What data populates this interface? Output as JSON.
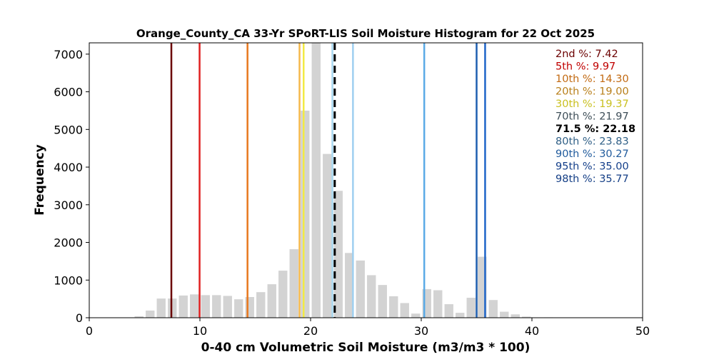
{
  "chart_data": {
    "type": "bar",
    "title": "Orange_County_CA 33-Yr SPoRT-LIS Soil Moisture Histogram for 22 Oct 2025",
    "xlabel": "0-40 cm Volumetric Soil Moisture (m3/m3 * 100)",
    "ylabel": "Frequency",
    "xlim": [
      0,
      50
    ],
    "ylim": [
      0,
      7300
    ],
    "xticks": [
      "0",
      "10",
      "20",
      "30",
      "40",
      "50"
    ],
    "yticks": [
      "0",
      "1000",
      "2000",
      "3000",
      "4000",
      "5000",
      "6000",
      "7000"
    ],
    "bar_color": "#d3d3d3",
    "bins": [
      {
        "x": 4.5,
        "count": 40
      },
      {
        "x": 5.5,
        "count": 190
      },
      {
        "x": 6.5,
        "count": 510
      },
      {
        "x": 7.5,
        "count": 510
      },
      {
        "x": 8.5,
        "count": 590
      },
      {
        "x": 9.5,
        "count": 620
      },
      {
        "x": 10.5,
        "count": 600
      },
      {
        "x": 11.5,
        "count": 600
      },
      {
        "x": 12.5,
        "count": 580
      },
      {
        "x": 13.5,
        "count": 490
      },
      {
        "x": 14.5,
        "count": 550
      },
      {
        "x": 15.5,
        "count": 680
      },
      {
        "x": 16.5,
        "count": 890
      },
      {
        "x": 17.5,
        "count": 1250
      },
      {
        "x": 18.5,
        "count": 1820
      },
      {
        "x": 19.5,
        "count": 5500
      },
      {
        "x": 20.5,
        "count": 7300
      },
      {
        "x": 21.5,
        "count": 4350
      },
      {
        "x": 22.5,
        "count": 3370
      },
      {
        "x": 23.5,
        "count": 1720
      },
      {
        "x": 24.5,
        "count": 1520
      },
      {
        "x": 25.5,
        "count": 1130
      },
      {
        "x": 26.5,
        "count": 870
      },
      {
        "x": 27.5,
        "count": 570
      },
      {
        "x": 28.5,
        "count": 390
      },
      {
        "x": 29.5,
        "count": 110
      },
      {
        "x": 30.5,
        "count": 760
      },
      {
        "x": 31.5,
        "count": 730
      },
      {
        "x": 32.5,
        "count": 360
      },
      {
        "x": 33.5,
        "count": 130
      },
      {
        "x": 34.5,
        "count": 530
      },
      {
        "x": 35.5,
        "count": 1620
      },
      {
        "x": 36.5,
        "count": 470
      },
      {
        "x": 37.5,
        "count": 160
      },
      {
        "x": 38.5,
        "count": 90
      },
      {
        "x": 39.5,
        "count": 30
      },
      {
        "x": 41.5,
        "count": 10
      }
    ],
    "percentile_lines": [
      {
        "label": "2nd %",
        "value": 7.42,
        "color": "#6b0000",
        "style": "solid"
      },
      {
        "label": "5th %",
        "value": 9.97,
        "color": "#e02020",
        "style": "solid"
      },
      {
        "label": "10th %",
        "value": 14.3,
        "color": "#e8781e",
        "style": "solid"
      },
      {
        "label": "20th %",
        "value": 19.0,
        "color": "#f5b84c",
        "style": "solid"
      },
      {
        "label": "30th %",
        "value": 19.37,
        "color": "#f2ea44",
        "style": "solid"
      },
      {
        "label": "70th %",
        "value": 21.97,
        "color": "#a8d8f0",
        "style": "solid"
      },
      {
        "label": "71.5 %",
        "value": 22.18,
        "color": "#000000",
        "style": "dashed"
      },
      {
        "label": "80th %",
        "value": 23.83,
        "color": "#9fcff0",
        "style": "solid"
      },
      {
        "label": "90th %",
        "value": 30.27,
        "color": "#5aaae6",
        "style": "solid"
      },
      {
        "label": "95th %",
        "value": 35.0,
        "color": "#1f5fb0",
        "style": "solid"
      },
      {
        "label": "98th %",
        "value": 35.77,
        "color": "#1e64c8",
        "style": "solid"
      }
    ],
    "legend_entries": [
      {
        "text": "2nd %: 7.42",
        "color": "#6b0000"
      },
      {
        "text": "5th %: 9.97",
        "color": "#c00000"
      },
      {
        "text": "10th %: 14.30",
        "color": "#c26a12"
      },
      {
        "text": "20th %: 19.00",
        "color": "#b87f1a"
      },
      {
        "text": "30th %: 19.37",
        "color": "#c9c020"
      },
      {
        "text": "70th %: 21.97",
        "color": "#3e4e58"
      },
      {
        "text": "71.5 %: 22.18",
        "color": "#000000"
      },
      {
        "text": "80th %: 23.83",
        "color": "#2f5f86"
      },
      {
        "text": "90th %: 30.27",
        "color": "#1f5a9c"
      },
      {
        "text": "95th %: 35.00",
        "color": "#143f8a"
      },
      {
        "text": "98th %: 35.77",
        "color": "#153f86"
      }
    ],
    "legend_position": "top-right",
    "grid": false
  }
}
